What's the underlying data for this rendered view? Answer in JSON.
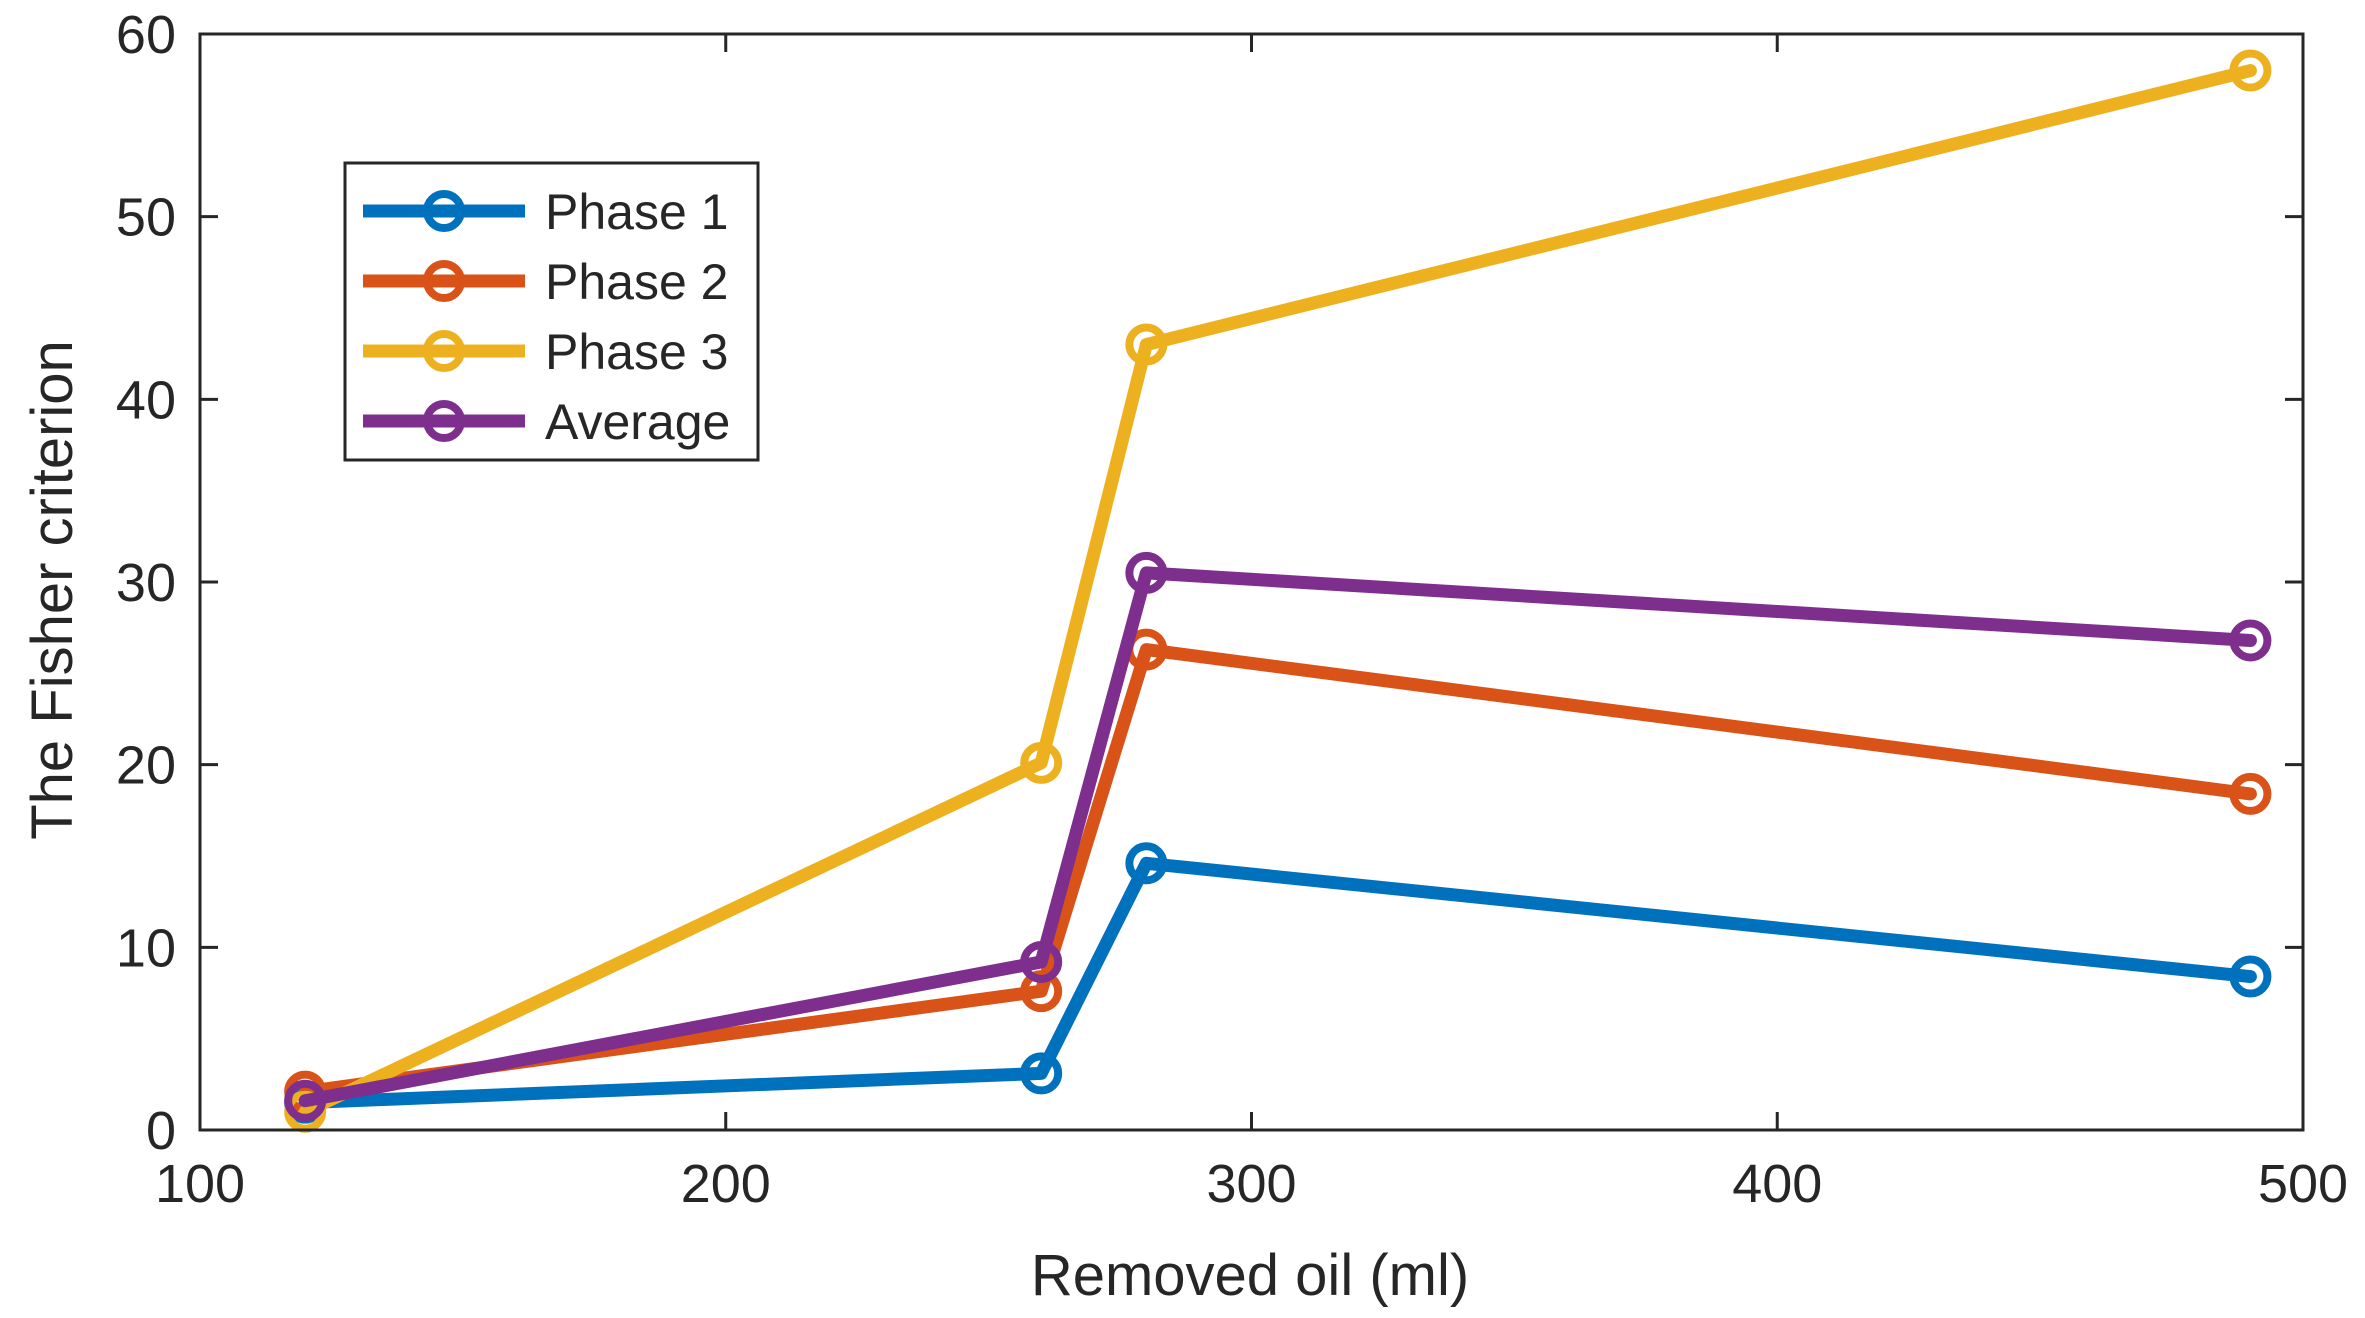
{
  "chart_data": {
    "type": "line",
    "title": "",
    "xlabel": "Removed oil (ml)",
    "ylabel": "The Fisher criterion",
    "xlim": [
      100,
      500
    ],
    "ylim": [
      0,
      60
    ],
    "xticks": [
      100,
      200,
      300,
      400,
      500
    ],
    "yticks": [
      0,
      10,
      20,
      30,
      40,
      50,
      60
    ],
    "xtick_labels": [
      "100",
      "200",
      "300",
      "400",
      "500"
    ],
    "ytick_labels": [
      "0",
      "10",
      "20",
      "30",
      "40",
      "50",
      "60"
    ],
    "grid": false,
    "legend_position": "top-left",
    "x": [
      120,
      260,
      280,
      490
    ],
    "series": [
      {
        "name": "Phase 1",
        "color": "#0072BD",
        "values": [
          1.5,
          3.1,
          14.6,
          8.4
        ]
      },
      {
        "name": "Phase 2",
        "color": "#D95319",
        "values": [
          2.1,
          7.6,
          26.3,
          18.4
        ]
      },
      {
        "name": "Phase 3",
        "color": "#EDB120",
        "values": [
          1.0,
          20.1,
          43.0,
          58.0
        ]
      },
      {
        "name": "Average",
        "color": "#7E2F8E",
        "values": [
          1.6,
          9.2,
          30.5,
          26.8
        ]
      }
    ]
  }
}
